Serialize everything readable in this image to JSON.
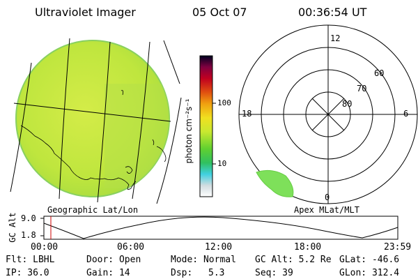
{
  "header": {
    "instrument": "Ultraviolet Imager",
    "date": "05 Oct 07",
    "time": "00:36:54 UT"
  },
  "colorbar": {
    "unit_label": "photon cm⁻²s⁻¹",
    "tick_100": "100",
    "tick_10": "10"
  },
  "left_panel": {
    "caption": "Geographic Lat/Lon"
  },
  "right_panel": {
    "caption": "Apex MLat/MLT",
    "mlt_top": "12",
    "mlt_left": "18",
    "mlt_right": "6",
    "mlt_bottom": "0",
    "lat_60": "60",
    "lat_70": "70",
    "lat_80": "80"
  },
  "altitude_plot": {
    "ylabel": "GC Alt",
    "ytick_high": "9.0",
    "ytick_low": "1.8",
    "xticks": [
      "00:00",
      "06:00",
      "12:00",
      "18:00",
      "23:59"
    ]
  },
  "info": {
    "filter": "Flt: LBHL",
    "ip": "IP: 36.0",
    "door": "Door: Open",
    "gain": "Gain: 14",
    "mode": "Mode: Normal",
    "dsp_label": "Dsp:",
    "dsp_value": "5.3",
    "gc_alt": "GC Alt: 5.2 Re",
    "seq": "Seq: 39",
    "glat": "GLat: -46.6",
    "glon": "GLon: 312.4"
  },
  "colors": {
    "disk": "#c4e840",
    "aurora": "#7ee05a",
    "marker": "#cc0000"
  }
}
